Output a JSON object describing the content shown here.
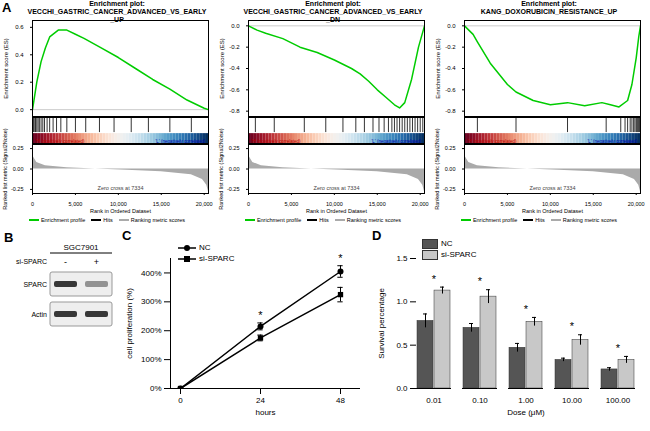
{
  "chart_data": [
    {
      "type": "gsea",
      "panel_label": "A",
      "title": "Enrichment plot:",
      "subtitle": "VECCHI_GASTRIC_CANCER_ADVANCED_VS_EARLY_UP",
      "xlabel": "Rank in Ordered Dataset",
      "ylabel": "Enrichment score (ES)",
      "xlim": [
        0,
        20500
      ],
      "xticks": [
        0,
        {
          "value": 5000,
          "label": "5,000"
        },
        {
          "value": 10000,
          "label": "10,000"
        },
        {
          "value": 15000,
          "label": "15,000"
        },
        {
          "value": 20000,
          "label": "20,000"
        }
      ],
      "ylim": [
        -0.05,
        0.65
      ],
      "yticks": [
        {
          "value": 0,
          "label": "0.0"
        },
        0.2,
        0.4,
        0.6
      ],
      "x": [
        0,
        500,
        1000,
        1500,
        2000,
        3000,
        4000,
        5000,
        6000,
        8000,
        10000,
        12000,
        14000,
        16000,
        18000,
        20000,
        20500
      ],
      "values": [
        0,
        0.2,
        0.35,
        0.45,
        0.53,
        0.58,
        0.58,
        0.55,
        0.52,
        0.45,
        0.38,
        0.3,
        0.22,
        0.15,
        0.07,
        0.01,
        0
      ],
      "color": "#00cc00",
      "hits": [
        100,
        200,
        350,
        500,
        650,
        800,
        1000,
        1200,
        1400,
        1700,
        2000,
        2400,
        2800,
        3300,
        4000,
        5000,
        6200,
        7800,
        9500,
        11500,
        13500,
        16000,
        18500
      ],
      "heat_labels": [
        "'H' (positively correlated)",
        "'L' (negatively correlated)"
      ],
      "metric": {
        "label": "Ranked list metric (Signal2Noise)",
        "ylim": [
          -0.3,
          0.3
        ],
        "yticks": [
          {
            "value": 0.25,
            "label": "0.25"
          },
          {
            "value": 0,
            "label": "0.00"
          },
          {
            "value": -0.25,
            "label": "-0.25"
          }
        ],
        "x": [
          0,
          100,
          500,
          1500,
          4000,
          7334,
          11000,
          15000,
          18500,
          19800,
          20300,
          20500
        ],
        "values": [
          0.28,
          0.15,
          0.08,
          0.04,
          0.015,
          0,
          -0.015,
          -0.035,
          -0.07,
          -0.13,
          -0.2,
          -0.28
        ],
        "color": "#aaaaaa"
      },
      "zero_cross": "Zero cross at 7334",
      "legend_entries": [
        "Enrichment profile",
        "Hits",
        "Ranking metric scores"
      ]
    },
    {
      "type": "gsea",
      "title": "Enrichment plot:",
      "subtitle": "VECCHI_GASTRIC_CANCER_ADVANCED_VS_EARLY_DN",
      "xlabel": "Rank in Ordered Dataset",
      "ylabel": "Enrichment score (ES)",
      "xlim": [
        0,
        20500
      ],
      "xticks": [
        0,
        {
          "value": 5000,
          "label": "5,000"
        },
        {
          "value": 10000,
          "label": "10,000"
        },
        {
          "value": 15000,
          "label": "15,000"
        },
        {
          "value": 20000,
          "label": "20,000"
        }
      ],
      "ylim": [
        -0.85,
        0.05
      ],
      "yticks": [
        {
          "value": 0,
          "label": "0.0"
        },
        {
          "value": -0.2,
          "label": "-0.2"
        },
        {
          "value": -0.4,
          "label": "-0.4"
        },
        {
          "value": -0.6,
          "label": "-0.6"
        },
        {
          "value": -0.8,
          "label": "-0.8"
        }
      ],
      "x": [
        0,
        1000,
        2000,
        4000,
        6000,
        8000,
        10000,
        12000,
        13000,
        14000,
        15000,
        16000,
        17000,
        17600,
        18200,
        19000,
        19800,
        20500
      ],
      "values": [
        0,
        -0.04,
        -0.07,
        -0.12,
        -0.2,
        -0.25,
        -0.32,
        -0.4,
        -0.45,
        -0.52,
        -0.6,
        -0.67,
        -0.74,
        -0.77,
        -0.72,
        -0.5,
        -0.2,
        0
      ],
      "color": "#00cc00",
      "hits": [
        800,
        3000,
        6500,
        9000,
        11000,
        12500,
        13500,
        14500,
        15200,
        15800,
        16300,
        16700,
        17000,
        17300,
        17600,
        17900,
        18200,
        18500,
        18800,
        19100,
        19400,
        19700,
        20000,
        20300
      ],
      "heat_labels": [
        "'H' (positively correlated)",
        "'L' (negatively correlated)"
      ],
      "metric": {
        "label": "Ranked list metric (Signal2Noise)",
        "ylim": [
          -0.3,
          0.3
        ],
        "yticks": [
          {
            "value": 0.25,
            "label": "0.25"
          },
          {
            "value": 0,
            "label": "0.00"
          },
          {
            "value": -0.25,
            "label": "-0.25"
          }
        ],
        "x": [
          0,
          100,
          500,
          1500,
          4000,
          7334,
          11000,
          15000,
          18500,
          19800,
          20300,
          20500
        ],
        "values": [
          0.28,
          0.15,
          0.08,
          0.04,
          0.015,
          0,
          -0.015,
          -0.035,
          -0.07,
          -0.13,
          -0.2,
          -0.28
        ],
        "color": "#aaaaaa"
      },
      "zero_cross": "Zero cross at 7334",
      "legend_entries": [
        "Enrichment profile",
        "Hits",
        "Ranking metric scores"
      ]
    },
    {
      "type": "gsea",
      "title": "Enrichment plot:",
      "subtitle": "KANG_DOXORUBICIN_RESISTANCE_UP",
      "xlabel": "Rank in Ordered Dataset",
      "ylabel": "Enrichment score (ES)",
      "xlim": [
        0,
        20500
      ],
      "xticks": [
        0,
        {
          "value": 5000,
          "label": "5,000"
        },
        {
          "value": 10000,
          "label": "10,000"
        },
        {
          "value": 15000,
          "label": "15,000"
        },
        {
          "value": 20000,
          "label": "20,000"
        }
      ],
      "ylim": [
        -0.85,
        0.05
      ],
      "yticks": [
        {
          "value": 0,
          "label": "0.0"
        },
        {
          "value": -0.2,
          "label": "-0.2"
        },
        {
          "value": -0.4,
          "label": "-0.4"
        },
        {
          "value": -0.6,
          "label": "-0.6"
        },
        {
          "value": -0.8,
          "label": "-0.8"
        }
      ],
      "x": [
        0,
        1000,
        1500,
        3000,
        5000,
        6000,
        8000,
        10000,
        12000,
        14000,
        16000,
        17000,
        18000,
        19000,
        19500,
        20000,
        20300,
        20500
      ],
      "values": [
        0,
        -0.08,
        -0.15,
        -0.35,
        -0.55,
        -0.62,
        -0.7,
        -0.74,
        -0.72,
        -0.75,
        -0.72,
        -0.74,
        -0.76,
        -0.7,
        -0.55,
        -0.3,
        -0.1,
        0
      ],
      "color": "#00cc00",
      "hits": [
        1500,
        6000,
        12000,
        16500,
        18200,
        18700,
        19000,
        19300,
        19500,
        19700,
        19850,
        20000,
        20100,
        20200,
        20300,
        20400
      ],
      "heat_labels": [
        "'H' (positively correlated)",
        "'L' (negatively correlated)"
      ],
      "metric": {
        "label": "Ranked list metric (Signal2Noise)",
        "ylim": [
          -0.3,
          0.3
        ],
        "yticks": [
          {
            "value": 0.25,
            "label": "0.25"
          },
          {
            "value": 0,
            "label": "0.00"
          },
          {
            "value": -0.25,
            "label": "-0.25"
          }
        ],
        "x": [
          0,
          100,
          500,
          1500,
          4000,
          7334,
          11000,
          15000,
          18500,
          19800,
          20300,
          20500
        ],
        "values": [
          0.28,
          0.15,
          0.08,
          0.04,
          0.015,
          0,
          -0.015,
          -0.035,
          -0.07,
          -0.13,
          -0.2,
          -0.28
        ],
        "color": "#aaaaaa"
      },
      "zero_cross": "Zero cross at 7334",
      "legend_entries": [
        "Enrichment profile",
        "Hits",
        "Ranking metric scores"
      ]
    },
    {
      "type": "western_blot",
      "panel_label": "B",
      "title": "SGC7901",
      "lane_header": "si-SPARC",
      "lanes": [
        "-",
        "+"
      ],
      "rows": [
        "SPARC",
        "Actin"
      ]
    },
    {
      "type": "line",
      "panel_label": "C",
      "xlabel": "hours",
      "ylabel": "cell proliferation (%)",
      "x": [
        0,
        24,
        48
      ],
      "xlim": [
        -3,
        54
      ],
      "xticks": [
        0,
        24,
        48
      ],
      "ylim": [
        0,
        450
      ],
      "yticks": [
        {
          "value": 0,
          "label": "0%"
        },
        {
          "value": 100,
          "label": "100%"
        },
        {
          "value": 200,
          "label": "200%"
        },
        {
          "value": 300,
          "label": "300%"
        },
        {
          "value": 400,
          "label": "400%"
        }
      ],
      "series": [
        {
          "name": "NC",
          "color": "#000000",
          "marker": "circle",
          "values": [
            0,
            215,
            405
          ],
          "errors": [
            0,
            12,
            20
          ]
        },
        {
          "name": "si-SPARC",
          "color": "#000000",
          "marker": "square",
          "values": [
            0,
            175,
            325
          ],
          "errors": [
            0,
            10,
            25
          ]
        }
      ],
      "legend": "top-left",
      "annotations": [
        {
          "text": "*",
          "x": 24
        },
        {
          "text": "*",
          "x": 48
        }
      ]
    },
    {
      "type": "bar",
      "panel_label": "D",
      "xlabel": "Dose (μM)",
      "ylabel": "Survival percentage",
      "categories": [
        "0.01",
        "0.10",
        "1.00",
        "10.00",
        "100.00"
      ],
      "ylim": [
        0,
        1.5
      ],
      "yticks": [
        {
          "value": 0,
          "label": "0.0"
        },
        0.5,
        {
          "value": 1,
          "label": "1.0"
        },
        1.5
      ],
      "series": [
        {
          "name": "NC",
          "color": "#555555",
          "values": [
            0.78,
            0.7,
            0.47,
            0.33,
            0.22
          ],
          "errors": [
            0.08,
            0.05,
            0.05,
            0.02,
            0.02
          ]
        },
        {
          "name": "si-SPARC",
          "color": "#c8c8c8",
          "values": [
            1.13,
            1.06,
            0.77,
            0.56,
            0.33
          ],
          "errors": [
            0.04,
            0.08,
            0.05,
            0.06,
            0.04
          ]
        }
      ],
      "legend": "top-left",
      "annotations": [
        {
          "text": "*",
          "category": "0.01"
        },
        {
          "text": "*",
          "category": "0.10"
        },
        {
          "text": "*",
          "category": "1.00"
        },
        {
          "text": "*",
          "category": "10.00"
        },
        {
          "text": "*",
          "category": "100.00"
        }
      ]
    }
  ]
}
